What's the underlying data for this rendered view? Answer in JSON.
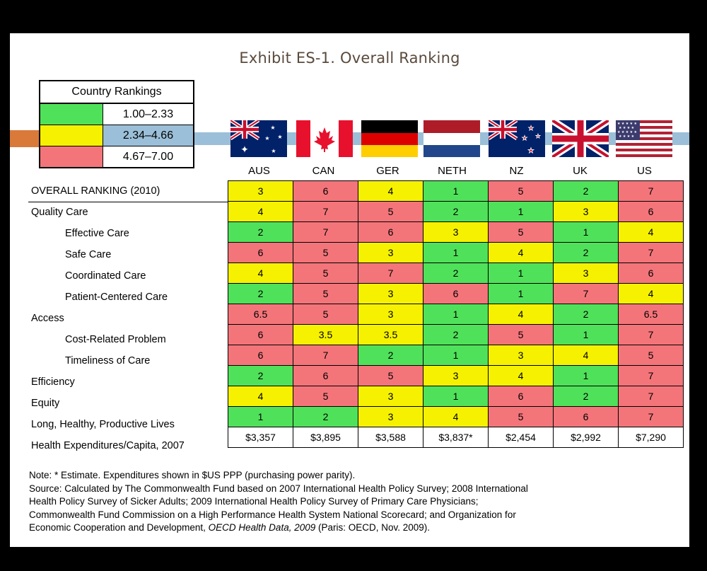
{
  "title": "Exhibit ES-1. Overall Ranking",
  "legend": {
    "header": "Country Rankings",
    "rows": [
      {
        "range": "1.00–2.33",
        "color": "#50e15a"
      },
      {
        "range": "2.34–4.66",
        "color": "#f6f100"
      },
      {
        "range": "4.67–7.00",
        "color": "#f3757a"
      }
    ]
  },
  "countries": [
    "AUS",
    "CAN",
    "GER",
    "NETH",
    "NZ",
    "UK",
    "US"
  ],
  "colors": {
    "green": "#50e15a",
    "yellow": "#f6f100",
    "red": "#f3757a",
    "band_orange": "#d97a3a",
    "band_blue": "#9bbfd8",
    "title": "#5a4a3c"
  },
  "rows": [
    {
      "label": "OVERALL RANKING (2010)",
      "indent": false,
      "values": [
        "3",
        "6",
        "4",
        "1",
        "5",
        "2",
        "7"
      ],
      "colors": [
        "y",
        "r",
        "y",
        "g",
        "r",
        "g",
        "r"
      ]
    },
    {
      "label": "Quality Care",
      "indent": false,
      "values": [
        "4",
        "7",
        "5",
        "2",
        "1",
        "3",
        "6"
      ],
      "colors": [
        "y",
        "r",
        "r",
        "g",
        "g",
        "y",
        "r"
      ]
    },
    {
      "label": "Effective Care",
      "indent": true,
      "values": [
        "2",
        "7",
        "6",
        "3",
        "5",
        "1",
        "4"
      ],
      "colors": [
        "g",
        "r",
        "r",
        "y",
        "r",
        "g",
        "y"
      ]
    },
    {
      "label": "Safe Care",
      "indent": true,
      "values": [
        "6",
        "5",
        "3",
        "1",
        "4",
        "2",
        "7"
      ],
      "colors": [
        "r",
        "r",
        "y",
        "g",
        "y",
        "g",
        "r"
      ]
    },
    {
      "label": "Coordinated Care",
      "indent": true,
      "values": [
        "4",
        "5",
        "7",
        "2",
        "1",
        "3",
        "6"
      ],
      "colors": [
        "y",
        "r",
        "r",
        "g",
        "g",
        "y",
        "r"
      ]
    },
    {
      "label": "Patient-Centered Care",
      "indent": true,
      "values": [
        "2",
        "5",
        "3",
        "6",
        "1",
        "7",
        "4"
      ],
      "colors": [
        "g",
        "r",
        "y",
        "r",
        "g",
        "r",
        "y"
      ]
    },
    {
      "label": "Access",
      "indent": false,
      "values": [
        "6.5",
        "5",
        "3",
        "1",
        "4",
        "2",
        "6.5"
      ],
      "colors": [
        "r",
        "r",
        "y",
        "g",
        "y",
        "g",
        "r"
      ]
    },
    {
      "label": "Cost-Related Problem",
      "indent": true,
      "values": [
        "6",
        "3.5",
        "3.5",
        "2",
        "5",
        "1",
        "7"
      ],
      "colors": [
        "r",
        "y",
        "y",
        "g",
        "r",
        "g",
        "r"
      ]
    },
    {
      "label": "Timeliness of Care",
      "indent": true,
      "values": [
        "6",
        "7",
        "2",
        "1",
        "3",
        "4",
        "5"
      ],
      "colors": [
        "r",
        "r",
        "g",
        "g",
        "y",
        "y",
        "r"
      ]
    },
    {
      "label": "Efficiency",
      "indent": false,
      "values": [
        "2",
        "6",
        "5",
        "3",
        "4",
        "1",
        "7"
      ],
      "colors": [
        "g",
        "r",
        "r",
        "y",
        "y",
        "g",
        "r"
      ]
    },
    {
      "label": "Equity",
      "indent": false,
      "values": [
        "4",
        "5",
        "3",
        "1",
        "6",
        "2",
        "7"
      ],
      "colors": [
        "y",
        "r",
        "y",
        "g",
        "r",
        "g",
        "r"
      ]
    },
    {
      "label": "Long, Healthy, Productive Lives",
      "indent": false,
      "values": [
        "1",
        "2",
        "3",
        "4",
        "5",
        "6",
        "7"
      ],
      "colors": [
        "g",
        "g",
        "y",
        "y",
        "r",
        "r",
        "r"
      ]
    },
    {
      "label": "Health Expenditures/Capita, 2007",
      "indent": false,
      "values": [
        "$3,357",
        "$3,895",
        "$3,588",
        "$3,837*",
        "$2,454",
        "$2,992",
        "$7,290"
      ],
      "colors": [
        "w",
        "w",
        "w",
        "w",
        "w",
        "w",
        "w"
      ]
    }
  ],
  "notes": {
    "note": "Note: * Estimate. Expenditures shown in $US PPP (purchasing power parity).",
    "source_1": "Source: Calculated by The Commonwealth Fund based on 2007 International Health Policy Survey; 2008 International",
    "source_2": "Health Policy Survey of Sicker Adults; 2009 International Health Policy Survey of Primary Care Physicians;",
    "source_3": "Commonwealth Fund Commission on a High Performance Health System National Scorecard; and Organization for",
    "source_4_pre": "Economic Cooperation and Development, ",
    "source_4_italic": "OECD Health Data, 2009",
    "source_4_post": " (Paris: OECD, Nov. 2009)."
  }
}
